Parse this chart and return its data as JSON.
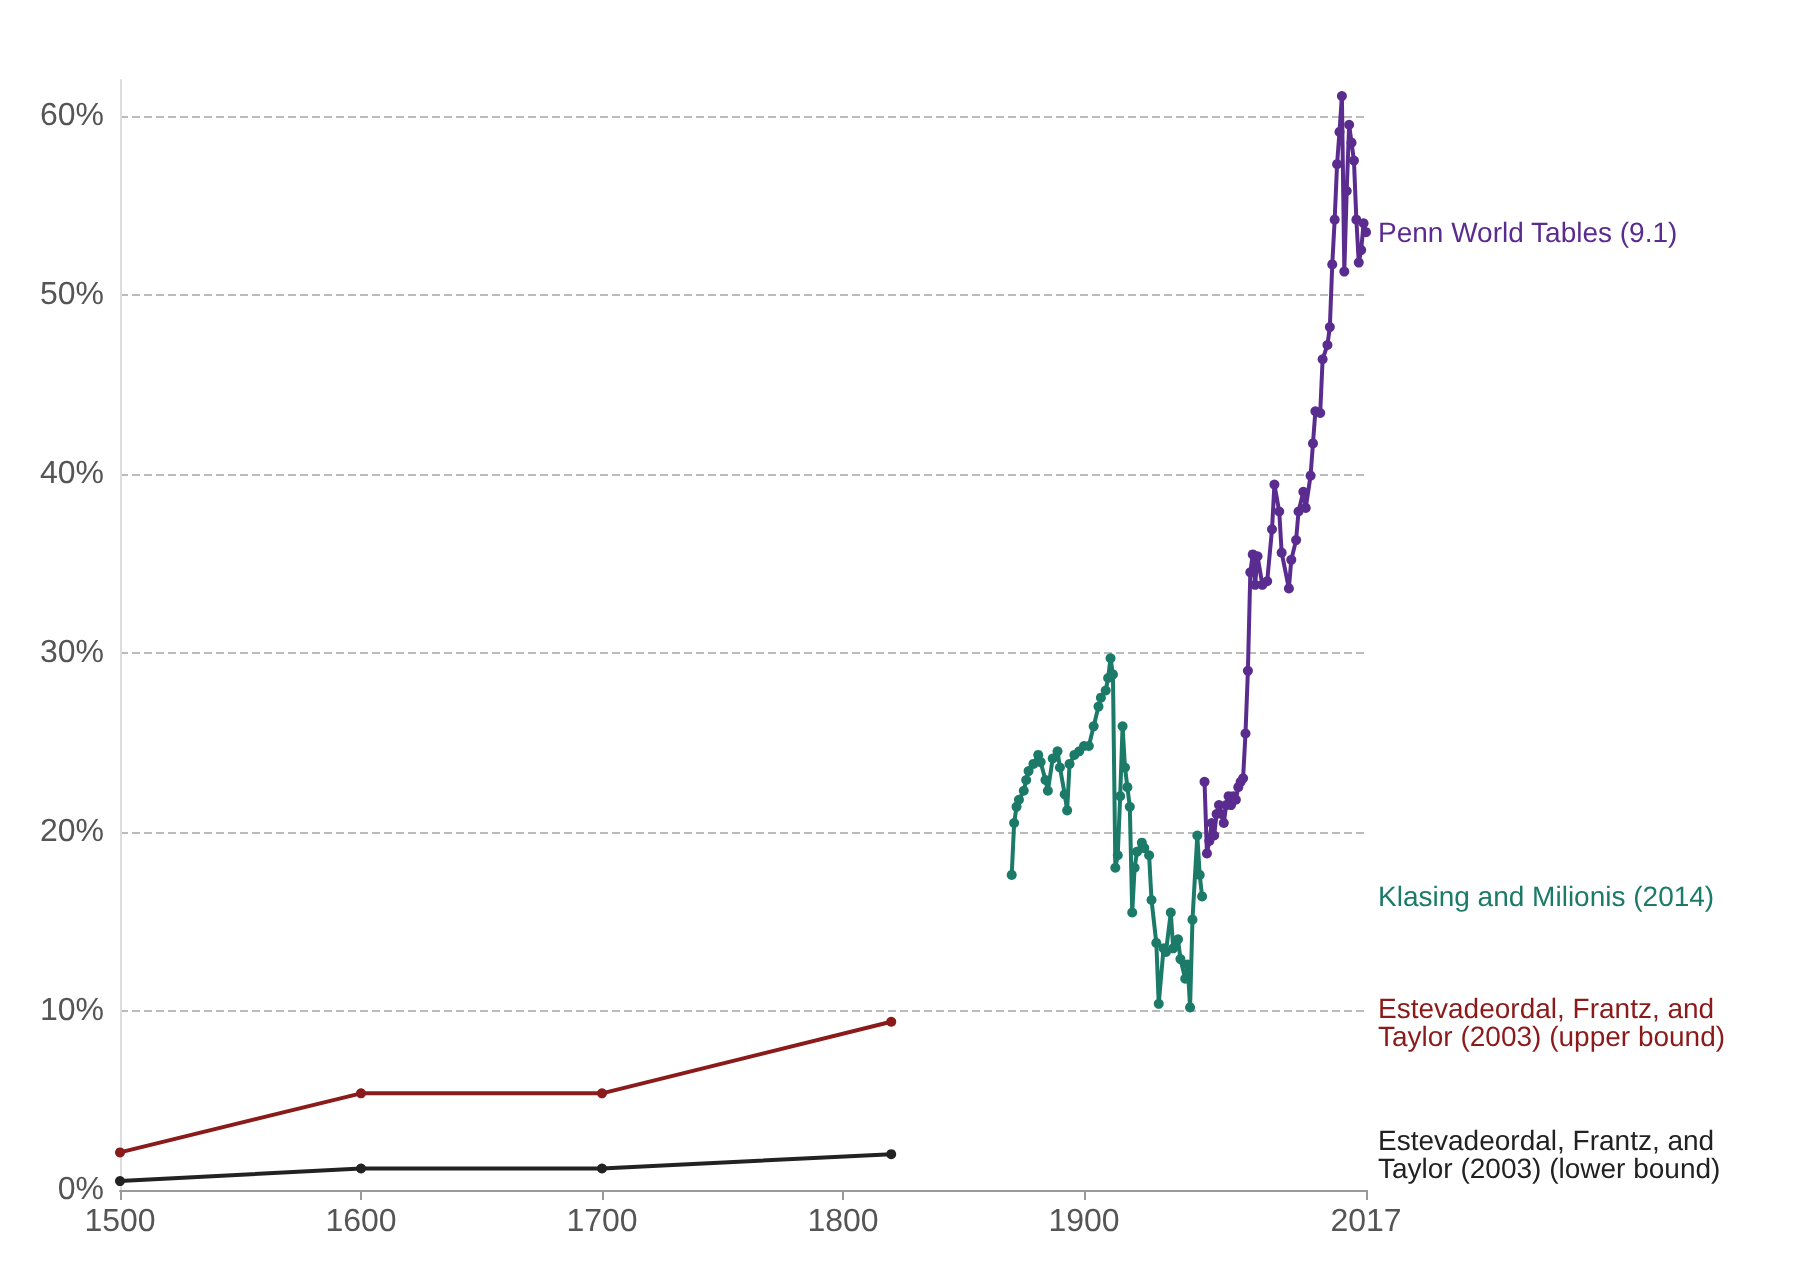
{
  "chart_data": {
    "type": "line",
    "xlim": [
      1500,
      2017
    ],
    "xticks": [
      1500,
      1600,
      1700,
      1800,
      1900,
      2017
    ],
    "ylim": [
      0,
      62
    ],
    "yticks": [
      {
        "value": 0,
        "label": "0%"
      },
      {
        "value": 10,
        "label": "10%"
      },
      {
        "value": 20,
        "label": "20%"
      },
      {
        "value": 30,
        "label": "30%"
      },
      {
        "value": 40,
        "label": "40%"
      },
      {
        "value": 50,
        "label": "50%"
      },
      {
        "value": 60,
        "label": "60%"
      }
    ],
    "grid": "y",
    "legend": false,
    "marker": "circle",
    "line_style": "solid",
    "series": [
      {
        "name": "Penn World Tables (9.1)",
        "color": "#5b2c8f",
        "x": [
          1950,
          1951,
          1952,
          1953,
          1954,
          1955,
          1956,
          1957,
          1958,
          1959,
          1960,
          1961,
          1962,
          1963,
          1964,
          1965,
          1966,
          1967,
          1968,
          1969,
          1970,
          1971,
          1972,
          1974,
          1976,
          1978,
          1979,
          1981,
          1982,
          1985,
          1986,
          1988,
          1989,
          1991,
          1992,
          1994,
          1995,
          1996,
          1998,
          1999,
          2001,
          2002,
          2003,
          2004,
          2005,
          2006,
          2007,
          2008,
          2009,
          2010,
          2011,
          2012,
          2013,
          2014,
          2015,
          2016,
          2017
        ],
        "values": [
          22.8,
          18.8,
          19.5,
          20.5,
          19.8,
          21,
          21.5,
          21,
          20.5,
          21.5,
          22,
          21.5,
          22,
          21.8,
          22.5,
          22.8,
          23,
          25.5,
          29,
          34.5,
          35.5,
          33.8,
          35.4,
          33.8,
          34,
          36.9,
          39.4,
          37.9,
          35.6,
          33.6,
          35.2,
          36.3,
          37.9,
          39,
          38.1,
          39.9,
          41.7,
          43.5,
          43.4,
          46.4,
          47.2,
          48.2,
          51.7,
          54.2,
          57.3,
          59.1,
          61.1,
          51.3,
          55.8,
          59.5,
          58.5,
          57.5,
          54.2,
          51.8,
          52.5,
          54,
          53.5
        ]
      },
      {
        "name": "Klasing and Milionis (2014)",
        "color": "#1b7a68",
        "x": [
          1870,
          1871,
          1872,
          1873,
          1875,
          1876,
          1877,
          1879,
          1881,
          1882,
          1884,
          1885,
          1887,
          1889,
          1890,
          1892,
          1893,
          1894,
          1896,
          1898,
          1900,
          1902,
          1904,
          1906,
          1907,
          1909,
          1910,
          1911,
          1912,
          1913,
          1914,
          1915,
          1916,
          1917,
          1918,
          1919,
          1920,
          1921,
          1922,
          1924,
          1925,
          1927,
          1928,
          1930,
          1931,
          1933,
          1934,
          1936,
          1937,
          1939,
          1940,
          1942,
          1943,
          1944,
          1945,
          1947,
          1948,
          1949
        ],
        "values": [
          17.6,
          20.5,
          21.4,
          21.8,
          22.3,
          22.9,
          23.4,
          23.8,
          24.3,
          23.9,
          22.9,
          22.3,
          24.1,
          24.5,
          23.6,
          22.1,
          21.2,
          23.8,
          24.3,
          24.5,
          24.8,
          24.8,
          25.9,
          27,
          27.5,
          27.9,
          28.6,
          29.7,
          28.8,
          18,
          18.7,
          22,
          25.9,
          23.6,
          22.5,
          21.4,
          15.5,
          18,
          18.9,
          19.4,
          19.1,
          18.7,
          16.2,
          13.8,
          10.4,
          13.5,
          13.3,
          15.5,
          13.5,
          14,
          12.9,
          11.8,
          12.6,
          10.2,
          15.1,
          19.8,
          17.6,
          16.4
        ]
      },
      {
        "name": "Estevadeordal, Frantz, and Taylor (2003) (upper bound)",
        "color": "#8b1a1a",
        "x": [
          1500,
          1600,
          1700,
          1820
        ],
        "values": [
          2.1,
          5.4,
          5.4,
          9.4
        ]
      },
      {
        "name": "Estevadeordal, Frantz, and Taylor (2003) (lower bound)",
        "color": "#222222",
        "x": [
          1500,
          1600,
          1700,
          1820
        ],
        "values": [
          0.5,
          1.2,
          1.2,
          2.0
        ]
      }
    ]
  }
}
